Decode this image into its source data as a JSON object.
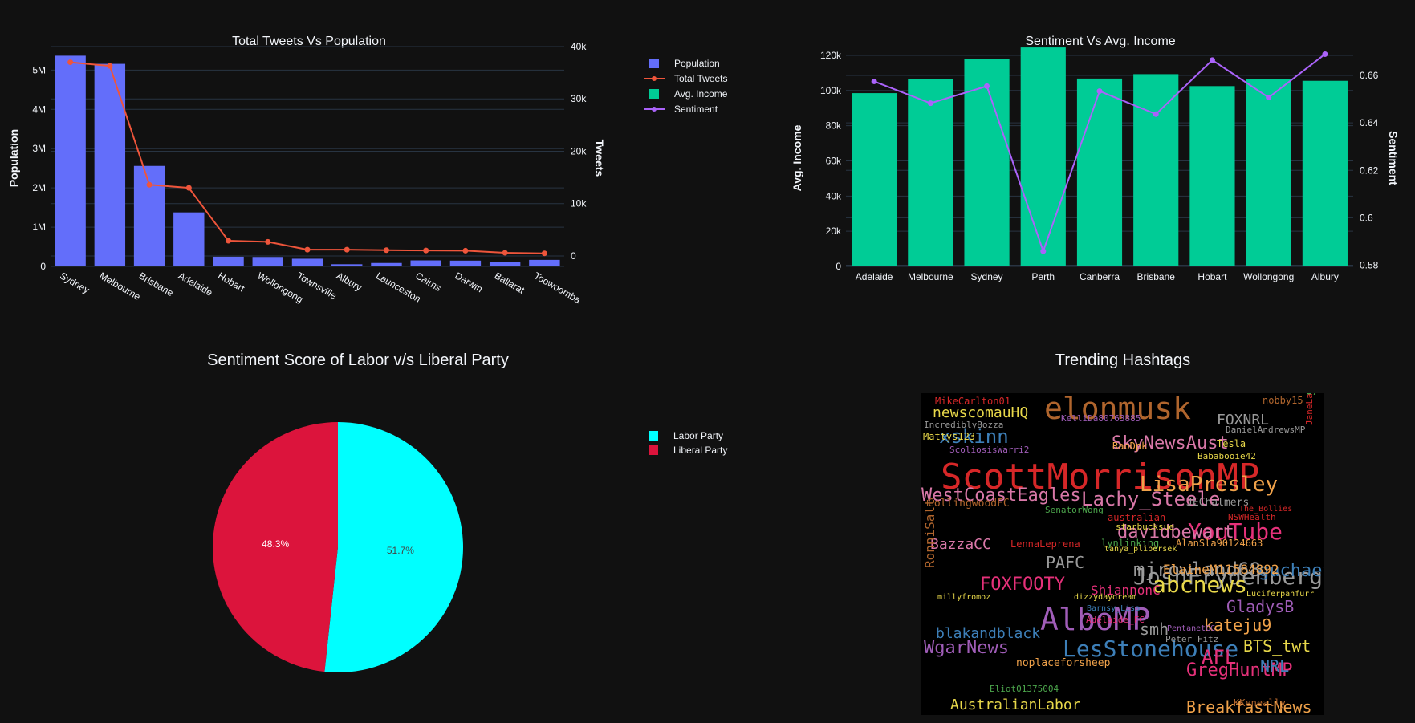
{
  "theme": {
    "background": "#111111",
    "grid": "#283442",
    "text": "#f2f5fa",
    "population_color": "#636efa",
    "tweets_color": "#ef553b",
    "income_color": "#00cc96",
    "sentiment_color": "#ab63fa",
    "labor_color": "#00ffff",
    "liberal_color": "#dc143c"
  },
  "legend_top": [
    {
      "label": "Population",
      "kind": "bar",
      "color": "#636efa"
    },
    {
      "label": "Total Tweets",
      "kind": "line",
      "color": "#ef553b"
    },
    {
      "label": "Avg. Income",
      "kind": "bar",
      "color": "#00cc96"
    },
    {
      "label": "Sentiment",
      "kind": "line",
      "color": "#ab63fa"
    }
  ],
  "legend_pie": [
    {
      "label": "Labor Party",
      "color": "#00ffff"
    },
    {
      "label": "Liberal Party",
      "color": "#dc143c"
    }
  ],
  "chart_data": [
    {
      "type": "bar",
      "title": "Total Tweets Vs Population",
      "ylabel": "Population",
      "y2label": "Tweets",
      "categories": [
        "Sydney",
        "Melbourne",
        "Brisbane",
        "Adelaide",
        "Hobart",
        "Wollongong",
        "Townsville",
        "Albury",
        "Launceston",
        "Cairns",
        "Darwin",
        "Ballarat",
        "Toowoomba"
      ],
      "ylim": [
        0,
        5600000
      ],
      "y2lim": [
        -2000,
        40000
      ],
      "yticks": [
        0,
        1000000,
        2000000,
        3000000,
        4000000,
        5000000
      ],
      "yticklabels": [
        "0",
        "1M",
        "2M",
        "3M",
        "4M",
        "5M"
      ],
      "y2ticks": [
        0,
        10000,
        20000,
        30000,
        40000
      ],
      "y2ticklabels": [
        "0",
        "10k",
        "20k",
        "30k",
        "40k"
      ],
      "series": [
        {
          "name": "Population",
          "type": "bar",
          "axis": "y",
          "values": [
            5367000,
            5159000,
            2560000,
            1376000,
            247000,
            240000,
            195000,
            55000,
            87000,
            153000,
            147000,
            106000,
            166000
          ]
        },
        {
          "name": "Total Tweets",
          "type": "line",
          "axis": "y2",
          "values": [
            37000,
            36300,
            13600,
            13000,
            2900,
            2700,
            1200,
            1200,
            1100,
            1050,
            1000,
            600,
            500
          ]
        }
      ]
    },
    {
      "type": "bar",
      "title": "Sentiment Vs Avg. Income",
      "ylabel": "Avg. Income",
      "y2label": "Sentiment",
      "categories": [
        "Adelaide",
        "Melbourne",
        "Sydney",
        "Perth",
        "Canberra",
        "Brisbane",
        "Hobart",
        "Wollongong",
        "Albury"
      ],
      "ylim": [
        0,
        125000
      ],
      "y2lim": [
        0.5795,
        0.6722
      ],
      "yticks": [
        0,
        20000,
        40000,
        60000,
        80000,
        100000,
        120000
      ],
      "yticklabels": [
        "0",
        "20k",
        "40k",
        "60k",
        "80k",
        "100k",
        "120k"
      ],
      "y2ticks": [
        0.58,
        0.6,
        0.62,
        0.64,
        0.66
      ],
      "y2ticklabels": [
        "0.58",
        "0.6",
        "0.62",
        "0.64",
        "0.66"
      ],
      "series": [
        {
          "name": "Avg. Income",
          "type": "bar",
          "axis": "y",
          "values": [
            98500,
            106500,
            117800,
            124500,
            106800,
            109300,
            102500,
            106300,
            105500
          ]
        },
        {
          "name": "Sentiment",
          "type": "line",
          "axis": "y2",
          "values": [
            0.6575,
            0.6483,
            0.6555,
            0.5859,
            0.6534,
            0.6437,
            0.6665,
            0.6507,
            0.669
          ]
        }
      ]
    },
    {
      "type": "pie",
      "title": "Sentiment Score of Labor v/s Liberal Party",
      "categories": [
        "Labor Party",
        "Liberal Party"
      ],
      "values": [
        51.7,
        48.3
      ],
      "value_labels": [
        "51.7%",
        "48.3%"
      ],
      "colors": [
        "#00ffff",
        "#dc143c"
      ]
    }
  ],
  "wordcloud": {
    "title": "Trending Hashtags",
    "words": [
      {
        "text": "ScottMorrisonMP",
        "size": 44,
        "color": "#d62728"
      },
      {
        "text": "elonmusk",
        "size": 38,
        "color": "#b0652d"
      },
      {
        "text": "AlboMP",
        "size": 38,
        "color": "#a05db8"
      },
      {
        "text": "LesStonehouse",
        "size": 28,
        "color": "#3d7fb8"
      },
      {
        "text": "JoshFrydenberg",
        "size": 28,
        "color": "#9a9a9a"
      },
      {
        "text": "abcnews",
        "size": 28,
        "color": "#e8d84a"
      },
      {
        "text": "YouTube",
        "size": 28,
        "color": "#e6317a"
      },
      {
        "text": "LisaPresley",
        "size": 26,
        "color": "#f0a24a"
      },
      {
        "text": "Lachy_Steele",
        "size": 24,
        "color": "#d978a8"
      },
      {
        "text": "WestCoastEagles",
        "size": 22,
        "color": "#d978a8"
      },
      {
        "text": "SkyNewsAust",
        "size": 22,
        "color": "#d978a8"
      },
      {
        "text": "xskinn",
        "size": 24,
        "color": "#3d7fb8"
      },
      {
        "text": "mjrowland68",
        "size": 24,
        "color": "#9a9a9a"
      },
      {
        "text": "davidbewart",
        "size": 22,
        "color": "#d978a8"
      },
      {
        "text": "GregHuntMP",
        "size": 22,
        "color": "#e6317a"
      },
      {
        "text": "FOXFOOTY",
        "size": 22,
        "color": "#e6317a"
      },
      {
        "text": "WgarNews",
        "size": 22,
        "color": "#a05db8"
      },
      {
        "text": "guchaetama",
        "size": 22,
        "color": "#3d7fb8"
      },
      {
        "text": "BreakfastNews",
        "size": 20,
        "color": "#f0a24a"
      },
      {
        "text": "AFL",
        "size": 24,
        "color": "#e6317a"
      },
      {
        "text": "BTS_twt",
        "size": 20,
        "color": "#e8d84a"
      },
      {
        "text": "GladysB",
        "size": 20,
        "color": "#a05db8"
      },
      {
        "text": "kateju9",
        "size": 20,
        "color": "#f0a24a"
      },
      {
        "text": "NRL",
        "size": 20,
        "color": "#3d7fb8"
      },
      {
        "text": "softsignalout",
        "size": 20,
        "color": "#4ca64c"
      },
      {
        "text": "newscomauHQ",
        "size": 18,
        "color": "#e8d84a"
      },
      {
        "text": "FOXNRL",
        "size": 18,
        "color": "#9a9a9a"
      },
      {
        "text": "blakandblack",
        "size": 18,
        "color": "#3d7fb8"
      },
      {
        "text": "ElaineM11584892",
        "size": 16,
        "color": "#f0a24a"
      },
      {
        "text": "PAFC",
        "size": 20,
        "color": "#9a9a9a"
      },
      {
        "text": "BazzaCC",
        "size": 18,
        "color": "#d978a8"
      },
      {
        "text": "ShiannonC",
        "size": 16,
        "color": "#e6317a"
      },
      {
        "text": "AustralianLabor",
        "size": 18,
        "color": "#e8d84a"
      },
      {
        "text": "RonniSalt",
        "size": 16,
        "color": "#b0652d"
      },
      {
        "text": "smh",
        "size": 20,
        "color": "#9a9a9a"
      },
      {
        "text": "noplaceforsheep",
        "size": 13,
        "color": "#f0a24a"
      },
      {
        "text": "MikeCarlton01",
        "size": 12,
        "color": "#d62728"
      },
      {
        "text": "nobby15",
        "size": 12,
        "color": "#b0652d"
      },
      {
        "text": "Mattys123",
        "size": 12,
        "color": "#e8d84a"
      },
      {
        "text": "ScoliosisWarri2",
        "size": 11,
        "color": "#a05db8"
      },
      {
        "text": "RaoDpk",
        "size": 12,
        "color": "#f0a24a"
      },
      {
        "text": "Tesla",
        "size": 12,
        "color": "#e8d84a"
      },
      {
        "text": "Bababooie42",
        "size": 11,
        "color": "#e8d84a"
      },
      {
        "text": "CollingwoodFC",
        "size": 13,
        "color": "#b0652d"
      },
      {
        "text": "SenatorWong",
        "size": 11,
        "color": "#4ca64c"
      },
      {
        "text": "JEChalmers",
        "size": 13,
        "color": "#9a9a9a"
      },
      {
        "text": "australian",
        "size": 12,
        "color": "#d62728"
      },
      {
        "text": "NSWHealth",
        "size": 11,
        "color": "#d62728"
      },
      {
        "text": "starbucksue",
        "size": 11,
        "color": "#e8d84a"
      },
      {
        "text": "lynlinking",
        "size": 12,
        "color": "#4ca64c"
      },
      {
        "text": "AlanSla90124663",
        "size": 12,
        "color": "#f0a24a"
      },
      {
        "text": "LennaLeprena",
        "size": 12,
        "color": "#d62728"
      },
      {
        "text": "tanya_plibersek",
        "size": 10,
        "color": "#e8d84a"
      },
      {
        "text": "IncrediblyBozza",
        "size": 11,
        "color": "#9a9a9a"
      },
      {
        "text": "KelliDa80763885",
        "size": 11,
        "color": "#a05db8"
      },
      {
        "text": "DanielAndrewsMP",
        "size": 11,
        "color": "#9a9a9a"
      },
      {
        "text": "JaneLaro",
        "size": 11,
        "color": "#d62728"
      },
      {
        "text": "The_Bollies",
        "size": 10,
        "color": "#d62728"
      },
      {
        "text": "Adelaide_FC",
        "size": 11,
        "color": "#e6317a"
      },
      {
        "text": "Peter_Fitz",
        "size": 11,
        "color": "#9a9a9a"
      },
      {
        "text": "PentanetGG",
        "size": 10,
        "color": "#a05db8"
      },
      {
        "text": "Eliot01375004",
        "size": 11,
        "color": "#4ca64c"
      },
      {
        "text": "KKeneally",
        "size": 12,
        "color": "#b0652d"
      },
      {
        "text": "millyfromoz",
        "size": 10,
        "color": "#e8d84a"
      },
      {
        "text": "Luciferpanfurr",
        "size": 10,
        "color": "#e8d84a"
      },
      {
        "text": "Barnsy_Lisa",
        "size": 10,
        "color": "#3d7fb8"
      },
      {
        "text": "dizzydaydream",
        "size": 10,
        "color": "#e8d84a"
      }
    ]
  }
}
